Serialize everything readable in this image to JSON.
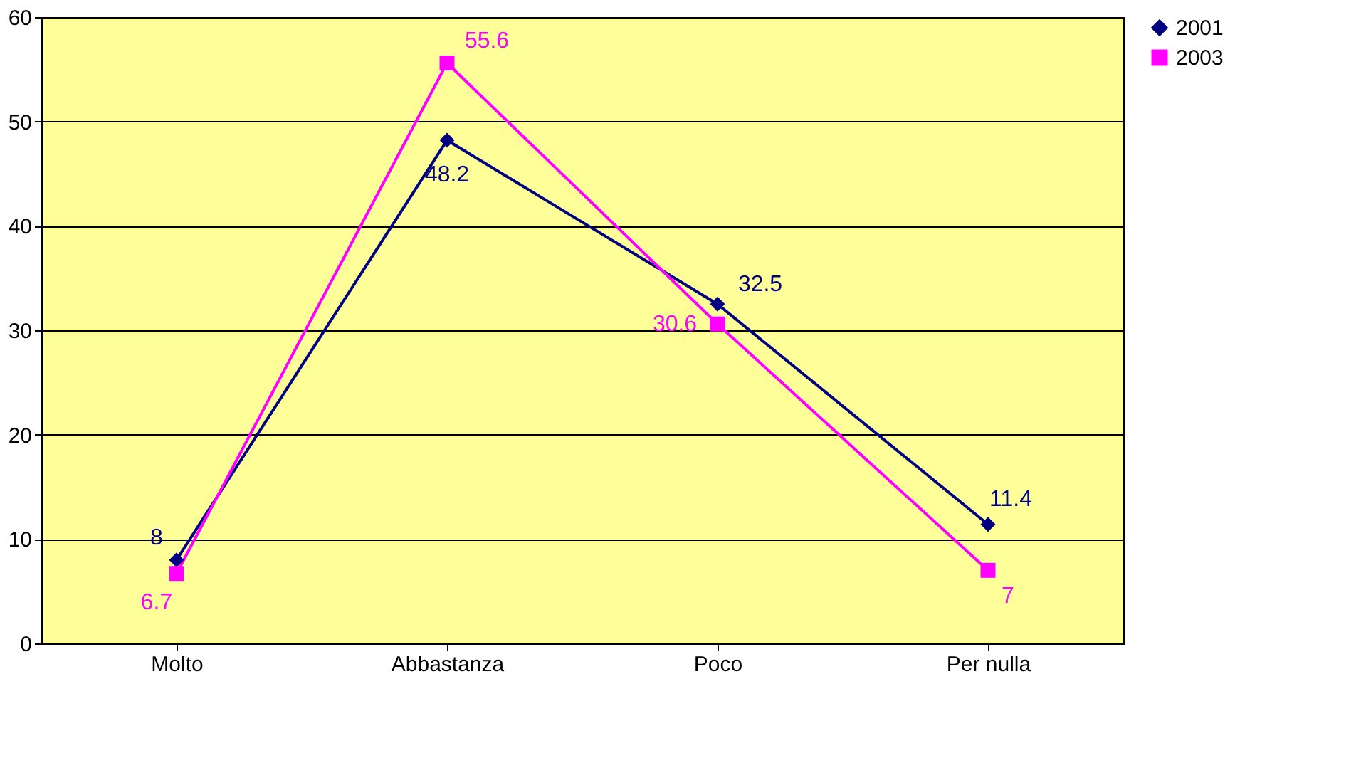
{
  "chart_data": {
    "type": "line",
    "categories": [
      "Molto",
      "Abbastanza",
      "Poco",
      "Per nulla"
    ],
    "series": [
      {
        "name": "2001",
        "color": "#000080",
        "marker": "diamond",
        "values": [
          8,
          48.2,
          32.5,
          11.4
        ]
      },
      {
        "name": "2003",
        "color": "#ff00ff",
        "marker": "square",
        "values": [
          6.7,
          55.6,
          30.6,
          7
        ]
      }
    ],
    "ylim": [
      0,
      60
    ],
    "yticks": [
      0,
      10,
      20,
      30,
      40,
      50,
      60
    ],
    "grid": "y",
    "legend": "right",
    "data_labels": true,
    "line_style": "solid"
  }
}
